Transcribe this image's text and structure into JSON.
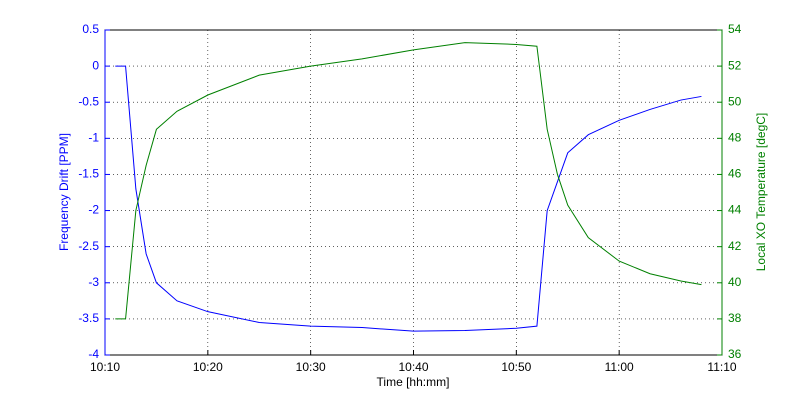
{
  "chart_data": {
    "type": "line",
    "xlabel": "Time [hh:mm]",
    "ylabel": "Frequency Drift [PPM]",
    "y2label": "Local XO Temperature [degC]",
    "x": [
      "10:11",
      "10:12",
      "10:13",
      "10:14",
      "10:15",
      "10:17",
      "10:20",
      "10:25",
      "10:30",
      "10:35",
      "10:40",
      "10:45",
      "10:50",
      "10:52",
      "10:53",
      "10:54",
      "10:55",
      "10:57",
      "11:00",
      "11:03",
      "11:06",
      "11:08"
    ],
    "series": [
      {
        "name": "Frequency Drift",
        "color": "#0000ff",
        "axis": "y",
        "values": [
          0,
          0,
          -1.7,
          -2.6,
          -3.0,
          -3.25,
          -3.4,
          -3.55,
          -3.6,
          -3.62,
          -3.67,
          -3.66,
          -3.63,
          -3.6,
          -2.0,
          -1.6,
          -1.2,
          -0.95,
          -0.75,
          -0.6,
          -0.47,
          -0.42
        ]
      },
      {
        "name": "Local XO Temperature",
        "color": "#008000",
        "axis": "y2",
        "values": [
          38,
          38,
          44,
          46.5,
          48.5,
          49.5,
          50.4,
          51.5,
          52,
          52.4,
          52.9,
          53.3,
          53.2,
          53.1,
          48.5,
          46,
          44.3,
          42.5,
          41.2,
          40.5,
          40.1,
          39.9
        ]
      }
    ],
    "xlim": [
      "10:10",
      "11:10"
    ],
    "xticks": [
      "10:10",
      "10:20",
      "10:30",
      "10:40",
      "10:50",
      "11:00",
      "11:10"
    ],
    "ylim": [
      -4,
      0.5
    ],
    "yticks": [
      0.5,
      0,
      -0.5,
      -1,
      -1.5,
      -2,
      -2.5,
      -3,
      -3.5,
      -4
    ],
    "y2lim": [
      36,
      54
    ],
    "y2ticks": [
      36,
      38,
      40,
      42,
      44,
      46,
      48,
      50,
      52,
      54
    ],
    "grid": true
  }
}
